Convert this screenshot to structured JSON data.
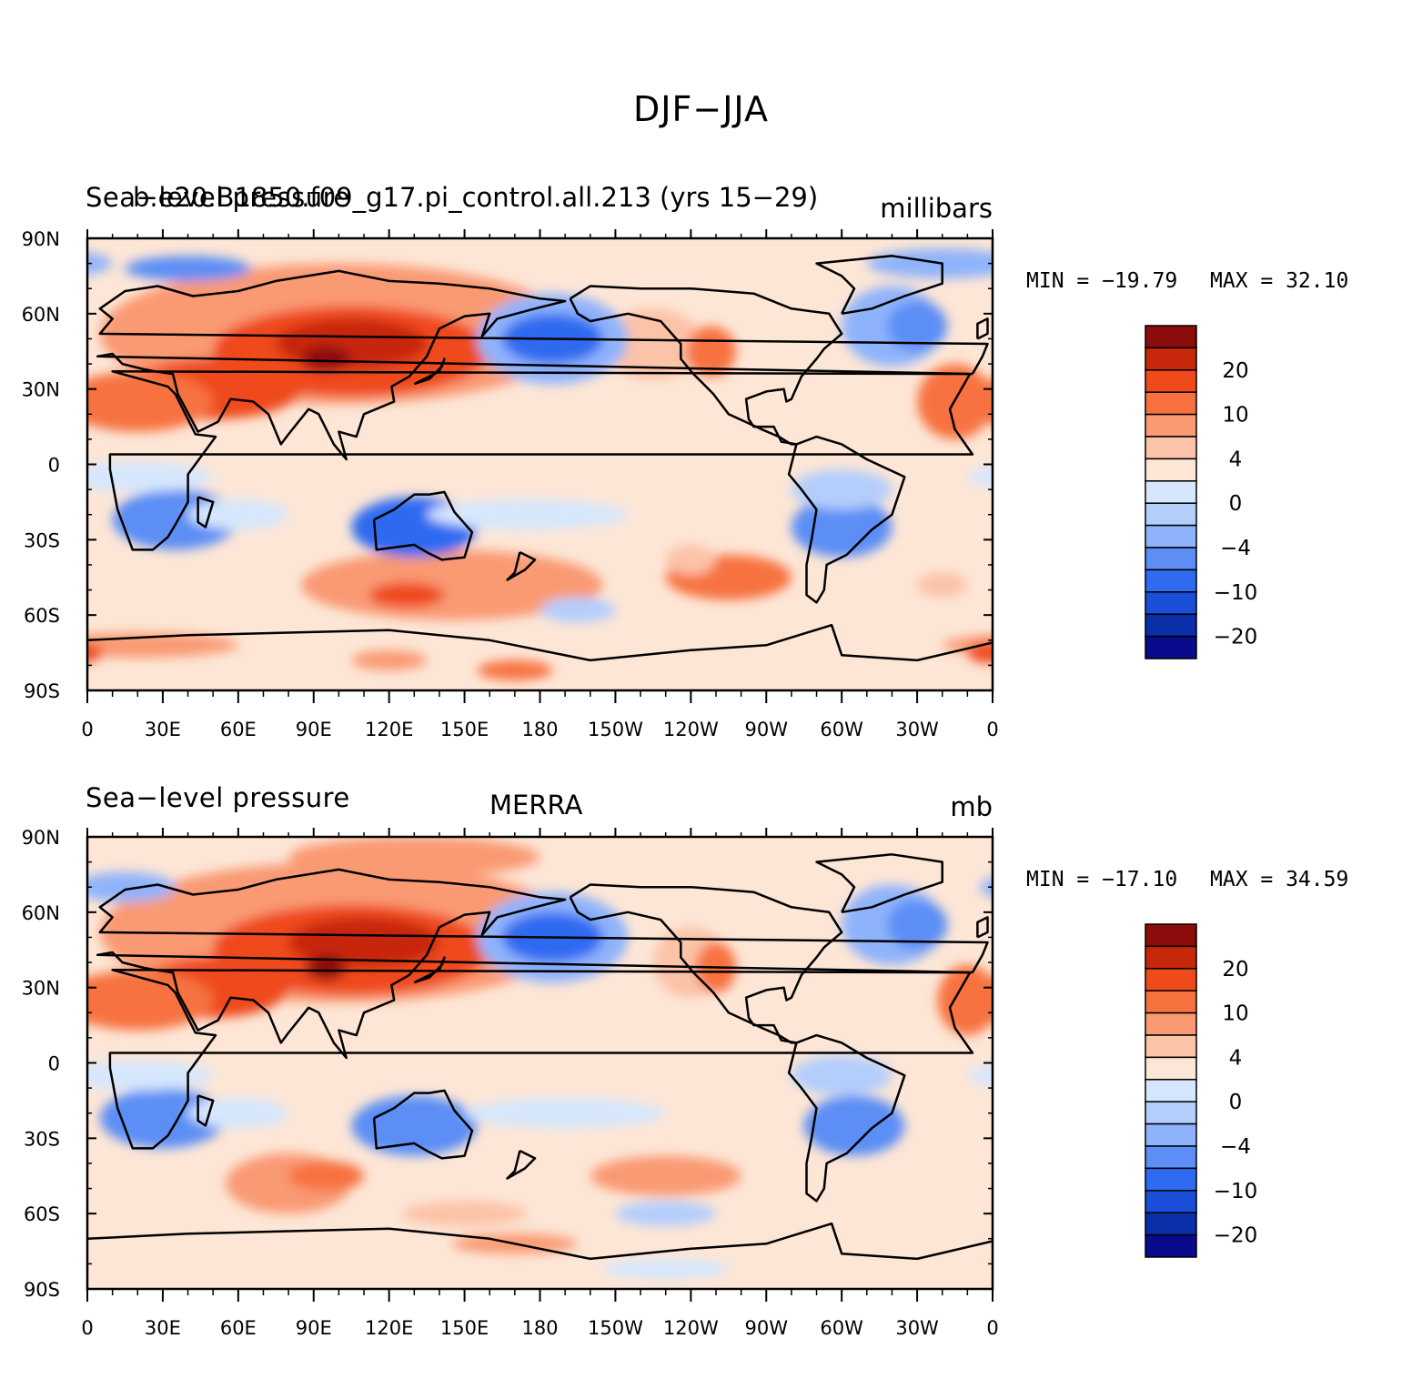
{
  "title": "DJF−JJA",
  "colors": {
    "levels": [
      "#0a0a8c",
      "#0b2fa8",
      "#1b4fd9",
      "#2f6bf0",
      "#5c8ef5",
      "#8fb3fb",
      "#b4cefc",
      "#d6e7fd",
      "#fde6d6",
      "#fbc3a7",
      "#f99a73",
      "#f7723f",
      "#ef4a1c",
      "#c7280b",
      "#8c0c0c"
    ],
    "ocean_neutral": "#fde6d6",
    "coast": "#000000"
  },
  "panels": [
    {
      "left_title": "Sea−level pressure",
      "center_title": "b.e20.B1850.f09_g17.pi_control.all.213 (yrs 15−29)",
      "right_title": "millibars",
      "min_label": "MIN = −19.79",
      "max_label": "MAX =  32.10",
      "min": -19.79,
      "max": 32.1
    },
    {
      "left_title": "Sea−level pressure",
      "center_title": "MERRA",
      "right_title": "mb",
      "min_label": "MIN = −17.10",
      "max_label": "MAX =  34.59",
      "min": -17.1,
      "max": 34.59
    }
  ],
  "lat_ticks": [
    "90N",
    "60N",
    "30N",
    "0",
    "30S",
    "60S",
    "90S"
  ],
  "lon_ticks": [
    "0",
    "30E",
    "60E",
    "90E",
    "120E",
    "150E",
    "180",
    "150W",
    "120W",
    "90W",
    "60W",
    "30W",
    "0"
  ],
  "colorbar_labels": [
    "20",
    "10",
    "4",
    "0",
    "−4",
    "−10",
    "−20"
  ],
  "chart_data": [
    {
      "type": "heatmap",
      "title": "b.e20.B1850.f09_g17.pi_control.all.213 (yrs 15−29)",
      "variable": "Sea−level pressure",
      "units": "millibars",
      "season": "DJF−JJA",
      "x_range": [
        0,
        360
      ],
      "y_range": [
        -90,
        90
      ],
      "min": -19.79,
      "max": 32.1,
      "contour_levels": [
        -20,
        -15,
        -10,
        -8,
        -6,
        -4,
        -2,
        0,
        2,
        4,
        6,
        10,
        15,
        20,
        25
      ]
    },
    {
      "type": "heatmap",
      "title": "MERRA",
      "variable": "Sea−level pressure",
      "units": "mb",
      "season": "DJF−JJA",
      "x_range": [
        0,
        360
      ],
      "y_range": [
        -90,
        90
      ],
      "min": -17.1,
      "max": 34.59,
      "contour_levels": [
        -20,
        -15,
        -10,
        -8,
        -6,
        -4,
        -2,
        0,
        2,
        4,
        6,
        10,
        15,
        20,
        25
      ]
    }
  ]
}
